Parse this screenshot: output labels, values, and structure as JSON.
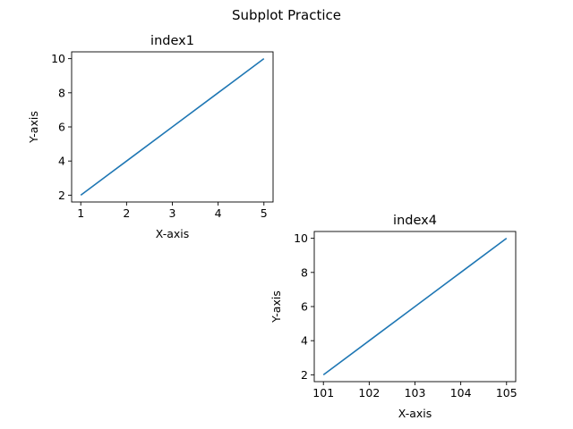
{
  "figure": {
    "title": "Subplot Practice"
  },
  "chart_data": [
    {
      "type": "line",
      "title": "index1",
      "xlabel": "X-axis",
      "ylabel": "Y-axis",
      "x": [
        1,
        2,
        3,
        4,
        5
      ],
      "series": [
        {
          "values": [
            2,
            4,
            6,
            8,
            10
          ],
          "color": "#1f77b4"
        }
      ],
      "xlim": [
        0.8,
        5.2
      ],
      "ylim": [
        1.6,
        10.4
      ],
      "xticks": [
        1,
        2,
        3,
        4,
        5
      ],
      "yticks": [
        2,
        4,
        6,
        8,
        10
      ],
      "xtick_labels": [
        "1",
        "2",
        "3",
        "4",
        "5"
      ],
      "ytick_labels": [
        "2",
        "4",
        "6",
        "8",
        "10"
      ],
      "grid": false
    },
    {
      "type": "line",
      "title": "index4",
      "xlabel": "X-axis",
      "ylabel": "Y-axis",
      "x": [
        101,
        102,
        103,
        104,
        105
      ],
      "series": [
        {
          "values": [
            2,
            4,
            6,
            8,
            10
          ],
          "color": "#1f77b4"
        }
      ],
      "xlim": [
        100.8,
        105.2
      ],
      "ylim": [
        1.6,
        10.4
      ],
      "xticks": [
        101,
        102,
        103,
        104,
        105
      ],
      "yticks": [
        2,
        4,
        6,
        8,
        10
      ],
      "xtick_labels": [
        "101",
        "102",
        "103",
        "104",
        "105"
      ],
      "ytick_labels": [
        "2",
        "4",
        "6",
        "8",
        "10"
      ],
      "grid": false
    }
  ]
}
